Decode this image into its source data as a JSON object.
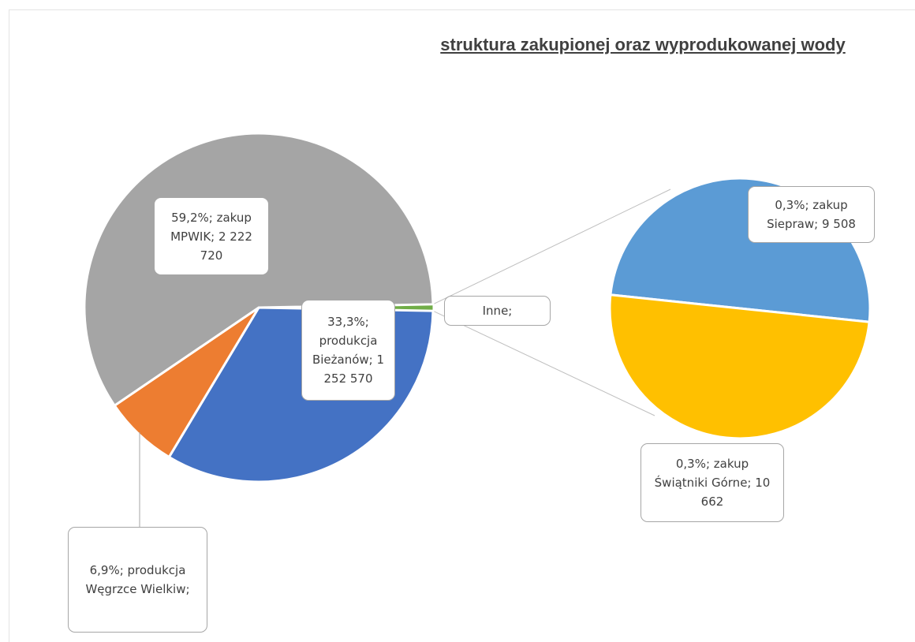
{
  "chart_data": {
    "type": "pie-of-pie",
    "title": "struktura zakupionej oraz wyprodukowanej wody",
    "values": [
      33.3,
      6.9,
      59.2
    ],
    "value_labels": [
      "33,3%; produkcja Bieżanów; 1 252 570",
      "6,9%; produkcja Węgrzce Wielkiw;",
      "59,2%; zakup MPWIK; 2 222 720"
    ],
    "colors": [
      "#4472c4",
      "#ed7d31",
      "#a5a5a5"
    ],
    "other_label": "Inne;",
    "other_color": "#70ad47",
    "secondary": {
      "values": [
        0.3,
        0.3
      ],
      "value_labels": [
        "0,3%; zakup Siepraw; 9 508",
        "0,3%; zakup Świątniki Górne; 10 662"
      ],
      "colors": [
        "#5b9bd5",
        "#ffc000"
      ]
    }
  }
}
